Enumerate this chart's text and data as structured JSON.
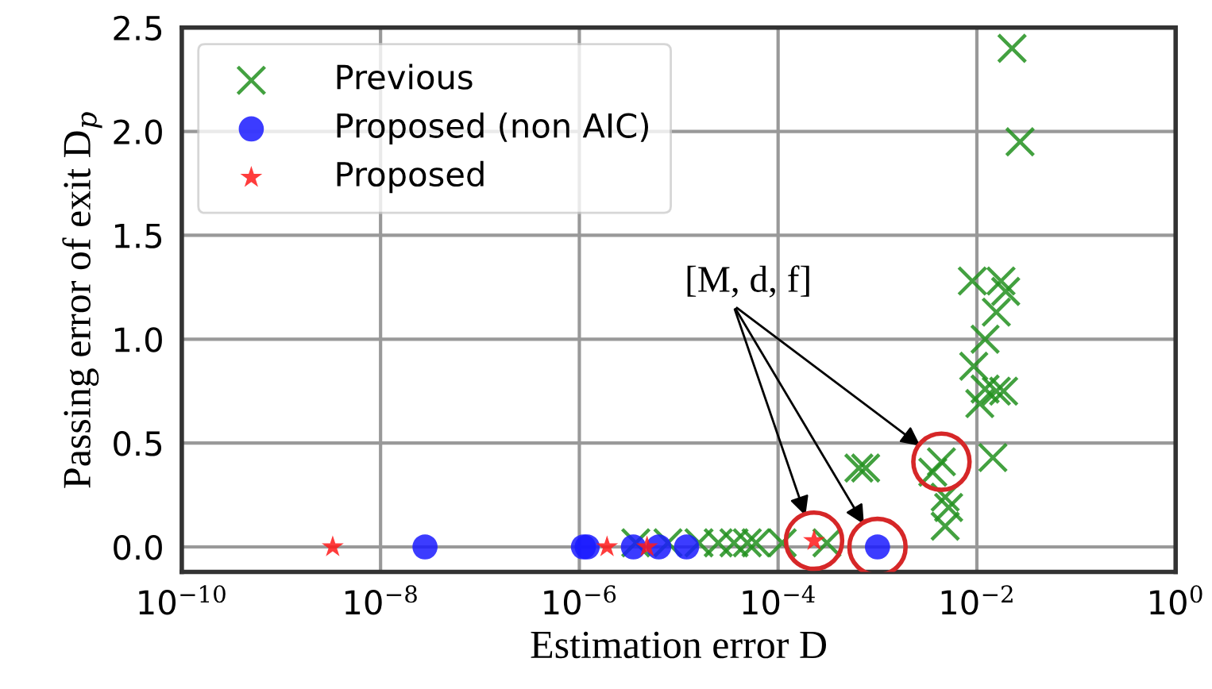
{
  "chart_data": {
    "type": "scatter",
    "xlabel": "Estimation error D",
    "ylabel": "Passing error of exit D$_{p}$",
    "log": "x",
    "grid": true,
    "legend": "top left",
    "annotations": [
      "[M, d, f]"
    ],
    "xlim": [
      1e-10,
      1
    ],
    "ylim": [
      -0.12,
      2.5
    ],
    "xticks": [
      {
        "value": 1e-10,
        "label": "10$^{−10}$"
      },
      {
        "value": 1e-08,
        "label": "10$^{−8}$"
      },
      {
        "value": 1e-06,
        "label": "10$^{−6}$"
      },
      {
        "value": 0.0001,
        "label": "10$^{−4}$"
      },
      {
        "value": 0.01,
        "label": "10$^{−2}$"
      },
      {
        "value": 1,
        "label": "10$^{0}$"
      }
    ],
    "yticks": [
      {
        "value": 0,
        "label": "0.0"
      },
      {
        "value": 0.5,
        "label": "0.5"
      },
      {
        "value": 1,
        "label": "1.0"
      },
      {
        "value": 1.5,
        "label": "1.5"
      },
      {
        "value": 2,
        "label": "2.0"
      },
      {
        "value": 2.5,
        "label": "2.5"
      }
    ],
    "series": [
      {
        "name": "Previous",
        "color": "#22911f",
        "marker": "cross",
        "x": [
          3.7e-06,
          7.8e-06,
          1.6e-05,
          2.5e-05,
          3.6e-05,
          4.9e-05,
          6e-05,
          0.00011,
          0.00031,
          0.00065,
          0.00076,
          0.0048,
          0.0052,
          0.0048,
          0.0226,
          0.0272,
          0.009,
          0.0175,
          0.0195,
          0.0157,
          0.0121,
          0.0093,
          0.0121,
          0.0157,
          0.0107,
          0.0186,
          0.0145,
          0.0036,
          0.0044
        ],
        "values": [
          0.02,
          0.02,
          0.02,
          0.02,
          0.02,
          0.02,
          0.02,
          0.02,
          0.02,
          0.38,
          0.38,
          0.24,
          0.19,
          0.1,
          2.4,
          1.95,
          1.28,
          1.28,
          1.23,
          1.13,
          1.0,
          0.87,
          0.76,
          0.75,
          0.69,
          0.75,
          0.43,
          0.36,
          0.41
        ]
      },
      {
        "name": "Proposed (non AIC)",
        "color": "#1a1aff",
        "marker": "circle",
        "x": [
          2.8e-08,
          1.1e-06,
          1.2e-06,
          3.5e-06,
          6.3e-06,
          1.2e-05,
          0.001
        ],
        "values": [
          0,
          0,
          0,
          0,
          0,
          0,
          0
        ]
      },
      {
        "name": "Proposed",
        "color": "#ff1a1a",
        "marker": "star",
        "x": [
          3.3e-09,
          1.9e-06,
          4.8e-06,
          0.00023
        ],
        "values": [
          0,
          0,
          0,
          0.03
        ]
      }
    ]
  }
}
